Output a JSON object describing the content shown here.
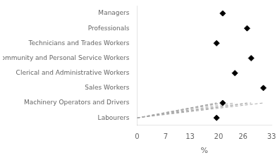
{
  "chart_data": {
    "type": "lollipop",
    "categories": [
      "Labourers",
      "Machinery Operators and Drivers",
      "Sales Workers",
      "Clerical and Administrative Workers",
      "Community and Personal Service Workers",
      "Technicians and Trades Workers",
      "Professionals",
      "Managers"
    ],
    "values": [
      19.5,
      21.0,
      31.0,
      24.0,
      28.0,
      19.5,
      27.0,
      21.0
    ],
    "xlim": [
      0,
      33
    ],
    "xticks": [
      0,
      7,
      13,
      20,
      26,
      33
    ],
    "xlabel": "%",
    "color": "black",
    "marker": "diamond",
    "line_style": "dashed",
    "grid": false
  }
}
